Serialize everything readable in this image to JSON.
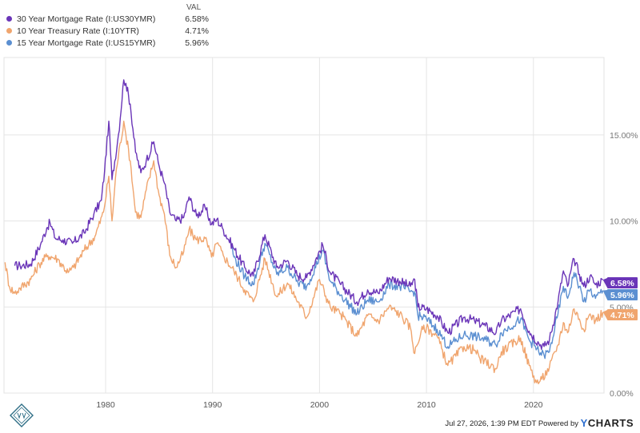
{
  "legend": {
    "header": "VAL",
    "items": [
      {
        "name": "30 Year Mortgage Rate (I:US30YMR)",
        "value": "6.58%",
        "color": "#6a35b8"
      },
      {
        "name": "10 Year Treasury Rate (I:10YTR)",
        "value": "4.71%",
        "color": "#f0a56e"
      },
      {
        "name": "15 Year Mortgage Rate (I:US15YMR)",
        "value": "5.96%",
        "color": "#5b8fd1"
      }
    ]
  },
  "footer": {
    "timestamp": "Jul 27, 2026, 1:39 PM EDT",
    "powered": "Powered by",
    "brand_y": "Y",
    "brand_rest": "CHARTS"
  },
  "chart_data": {
    "type": "line",
    "xlim": [
      1970.5,
      2026.6
    ],
    "ylim": [
      0,
      19.5
    ],
    "x_ticks": [
      1980,
      1990,
      2000,
      2010,
      2020
    ],
    "y_ticks": [
      {
        "value": 0,
        "label": "0.00%"
      },
      {
        "value": 5,
        "label": "5.00%"
      },
      {
        "value": 10,
        "label": "10.00%"
      },
      {
        "value": 15,
        "label": "15.00%"
      }
    ],
    "grid": true,
    "end_labels": [
      {
        "series": 0,
        "label": "6.58%"
      },
      {
        "series": 2,
        "label": "5.96%"
      },
      {
        "series": 1,
        "label": "4.71%"
      }
    ],
    "series": [
      {
        "name": "30 Year Mortgage Rate (I:US30YMR)",
        "color": "#6a35b8",
        "points": [
          [
            1971.5,
            7.4
          ],
          [
            1972,
            7.4
          ],
          [
            1973,
            7.5
          ],
          [
            1973.9,
            8.6
          ],
          [
            1974.5,
            9.6
          ],
          [
            1974.8,
            9.9
          ],
          [
            1975.3,
            9.0
          ],
          [
            1976,
            8.9
          ],
          [
            1976.9,
            8.7
          ],
          [
            1978,
            9.3
          ],
          [
            1978.9,
            10.4
          ],
          [
            1979.6,
            11.2
          ],
          [
            1979.9,
            12.9
          ],
          [
            1980.3,
            15.8
          ],
          [
            1980.6,
            12.4
          ],
          [
            1981.2,
            15.0
          ],
          [
            1981.7,
            18.2
          ],
          [
            1981.9,
            18.0
          ],
          [
            1982.3,
            16.8
          ],
          [
            1982.8,
            14.0
          ],
          [
            1983.3,
            12.8
          ],
          [
            1983.8,
            13.5
          ],
          [
            1984.5,
            14.6
          ],
          [
            1985,
            13.2
          ],
          [
            1985.5,
            12.2
          ],
          [
            1986,
            10.5
          ],
          [
            1986.6,
            10.0
          ],
          [
            1987.3,
            10.2
          ],
          [
            1987.8,
            11.4
          ],
          [
            1988.5,
            10.3
          ],
          [
            1989.3,
            10.8
          ],
          [
            1989.9,
            9.8
          ],
          [
            1990.4,
            10.1
          ],
          [
            1991,
            9.5
          ],
          [
            1992,
            8.4
          ],
          [
            1993,
            7.3
          ],
          [
            1993.8,
            6.8
          ],
          [
            1994.9,
            9.2
          ],
          [
            1996,
            7.3
          ],
          [
            1997,
            7.7
          ],
          [
            1998,
            6.8
          ],
          [
            1998.8,
            6.7
          ],
          [
            2000.3,
            8.6
          ],
          [
            2001,
            7.0
          ],
          [
            2002,
            6.3
          ],
          [
            2003.5,
            5.3
          ],
          [
            2004.5,
            6.0
          ],
          [
            2005.5,
            5.8
          ],
          [
            2006.5,
            6.7
          ],
          [
            2007.5,
            6.5
          ],
          [
            2008.5,
            6.2
          ],
          [
            2008.9,
            6.6
          ],
          [
            2009.2,
            5.0
          ],
          [
            2010,
            4.9
          ],
          [
            2011,
            4.5
          ],
          [
            2012,
            3.5
          ],
          [
            2013.5,
            4.4
          ],
          [
            2014.5,
            4.2
          ],
          [
            2015.5,
            3.9
          ],
          [
            2016.5,
            3.5
          ],
          [
            2017,
            4.2
          ],
          [
            2018.8,
            4.9
          ],
          [
            2019.6,
            3.6
          ],
          [
            2020.5,
            2.9
          ],
          [
            2021,
            2.7
          ],
          [
            2021.5,
            3.1
          ],
          [
            2022.3,
            5.3
          ],
          [
            2022.8,
            7.1
          ],
          [
            2023.2,
            6.2
          ],
          [
            2023.8,
            7.8
          ],
          [
            2024.3,
            6.9
          ],
          [
            2024.7,
            6.2
          ],
          [
            2025.3,
            6.8
          ],
          [
            2025.8,
            6.3
          ],
          [
            2026.5,
            6.58
          ]
        ]
      },
      {
        "name": "10 Year Treasury Rate (I:10YTR)",
        "color": "#f0a56e",
        "points": [
          [
            1970.6,
            7.6
          ],
          [
            1971,
            6.2
          ],
          [
            1971.5,
            5.8
          ],
          [
            1972,
            6.1
          ],
          [
            1973,
            6.6
          ],
          [
            1973.8,
            7.5
          ],
          [
            1974.6,
            8.0
          ],
          [
            1975.5,
            7.8
          ],
          [
            1976.5,
            7.0
          ],
          [
            1977,
            7.3
          ],
          [
            1978,
            8.3
          ],
          [
            1979,
            9.1
          ],
          [
            1979.8,
            10.5
          ],
          [
            1980.3,
            12.6
          ],
          [
            1980.6,
            10.0
          ],
          [
            1981,
            13.0
          ],
          [
            1981.7,
            15.8
          ],
          [
            1981.9,
            15.0
          ],
          [
            1982.3,
            13.5
          ],
          [
            1982.8,
            10.5
          ],
          [
            1983.3,
            10.2
          ],
          [
            1983.8,
            11.8
          ],
          [
            1984.5,
            13.5
          ],
          [
            1985,
            11.5
          ],
          [
            1985.5,
            10.4
          ],
          [
            1986,
            8.0
          ],
          [
            1986.6,
            7.3
          ],
          [
            1987.3,
            8.2
          ],
          [
            1987.8,
            9.5
          ],
          [
            1988.5,
            8.9
          ],
          [
            1989.3,
            9.0
          ],
          [
            1989.9,
            7.9
          ],
          [
            1990.4,
            8.7
          ],
          [
            1991,
            8.0
          ],
          [
            1992,
            7.1
          ],
          [
            1993,
            6.0
          ],
          [
            1993.8,
            5.3
          ],
          [
            1994.9,
            7.8
          ],
          [
            1996,
            5.6
          ],
          [
            1997,
            6.4
          ],
          [
            1998,
            5.3
          ],
          [
            1998.8,
            4.4
          ],
          [
            2000,
            6.6
          ],
          [
            2001,
            5.0
          ],
          [
            2002,
            4.6
          ],
          [
            2003.5,
            3.3
          ],
          [
            2004.5,
            4.5
          ],
          [
            2005.5,
            4.2
          ],
          [
            2006.5,
            5.0
          ],
          [
            2007.5,
            4.6
          ],
          [
            2008.5,
            3.8
          ],
          [
            2008.9,
            2.3
          ],
          [
            2009.5,
            3.6
          ],
          [
            2010,
            3.8
          ],
          [
            2011,
            3.3
          ],
          [
            2012,
            1.6
          ],
          [
            2013.5,
            2.7
          ],
          [
            2014.5,
            2.5
          ],
          [
            2015,
            2.0
          ],
          [
            2016.5,
            1.4
          ],
          [
            2017,
            2.4
          ],
          [
            2018.8,
            3.2
          ],
          [
            2019.6,
            1.6
          ],
          [
            2020.3,
            0.6
          ],
          [
            2020.8,
            0.8
          ],
          [
            2021.5,
            1.5
          ],
          [
            2022.3,
            2.8
          ],
          [
            2022.8,
            4.1
          ],
          [
            2023.2,
            3.5
          ],
          [
            2023.8,
            4.9
          ],
          [
            2024.3,
            4.3
          ],
          [
            2024.7,
            3.7
          ],
          [
            2025.3,
            4.6
          ],
          [
            2025.8,
            4.2
          ],
          [
            2026.5,
            4.71
          ]
        ]
      },
      {
        "name": "15 Year Mortgage Rate (I:US15YMR)",
        "color": "#5b8fd1",
        "points": [
          [
            1991.7,
            8.8
          ],
          [
            1992,
            7.9
          ],
          [
            1993,
            6.8
          ],
          [
            1993.8,
            6.3
          ],
          [
            1994.9,
            8.7
          ],
          [
            1996,
            6.9
          ],
          [
            1997,
            7.3
          ],
          [
            1998,
            6.4
          ],
          [
            1998.8,
            6.2
          ],
          [
            2000.3,
            8.3
          ],
          [
            2001,
            6.5
          ],
          [
            2002,
            5.7
          ],
          [
            2003.5,
            4.6
          ],
          [
            2004.5,
            5.4
          ],
          [
            2005.5,
            5.3
          ],
          [
            2006.5,
            6.3
          ],
          [
            2007.5,
            6.2
          ],
          [
            2008.5,
            5.9
          ],
          [
            2008.9,
            5.9
          ],
          [
            2009.2,
            4.5
          ],
          [
            2010,
            4.3
          ],
          [
            2011,
            3.7
          ],
          [
            2012,
            2.7
          ],
          [
            2013.5,
            3.4
          ],
          [
            2014.5,
            3.3
          ],
          [
            2015.5,
            3.1
          ],
          [
            2016.5,
            2.8
          ],
          [
            2017,
            3.5
          ],
          [
            2018.8,
            4.3
          ],
          [
            2019.6,
            3.1
          ],
          [
            2020.5,
            2.4
          ],
          [
            2021,
            2.2
          ],
          [
            2021.5,
            2.4
          ],
          [
            2022.3,
            4.6
          ],
          [
            2022.8,
            6.2
          ],
          [
            2023.2,
            5.5
          ],
          [
            2023.8,
            7.0
          ],
          [
            2024.3,
            6.2
          ],
          [
            2024.7,
            5.3
          ],
          [
            2025.3,
            6.0
          ],
          [
            2025.8,
            5.5
          ],
          [
            2026.5,
            5.96
          ]
        ]
      }
    ]
  }
}
